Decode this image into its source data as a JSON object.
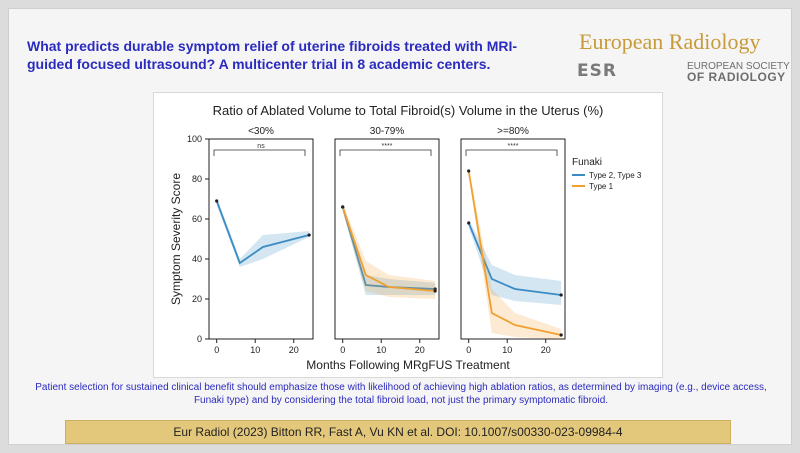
{
  "header": {
    "title": "What predicts durable symptom relief of uterine fibroids treated with MRI-guided focused ultrasound? A multicenter trial in 8 academic centers.",
    "journal": "European Radiology",
    "society_mark": "ESR",
    "society_line1": "EUROPEAN SOCIETY",
    "society_line2": "OF RADIOLOGY"
  },
  "chart_data": {
    "type": "line",
    "title": "Ratio of Ablated Volume to Total Fibroid(s) Volume in the Uterus (%)",
    "xlabel": "Months Following MRgFUS Treatment",
    "ylabel": "Symptom Severity Score",
    "ylim": [
      0,
      100
    ],
    "xlim": [
      -2,
      25
    ],
    "yticks": [
      "0",
      "20",
      "40",
      "60",
      "80",
      "100"
    ],
    "xticks": [
      "0",
      "10",
      "20"
    ],
    "legend": {
      "title": "Funaki",
      "placement": "right",
      "entries": [
        {
          "name": "Type 2, Type 3",
          "color": "#3b8cc4"
        },
        {
          "name": "Type 1",
          "color": "#f0a030"
        }
      ]
    },
    "panels": [
      {
        "title": "<30%",
        "significance": "ns",
        "series": [
          {
            "name": "Type 2, Type 3",
            "color": "#3b8cc4",
            "x": [
              0,
              6,
              12,
              24
            ],
            "y": [
              69,
              38,
              46,
              52
            ],
            "lower": [
              67,
              36,
              40,
              51
            ],
            "upper": [
              71,
              40,
              52,
              54
            ]
          }
        ]
      },
      {
        "title": "30-79%",
        "significance": "****",
        "series": [
          {
            "name": "Type 2, Type 3",
            "color": "#3b8cc4",
            "x": [
              0,
              6,
              12,
              24
            ],
            "y": [
              66,
              27,
              26,
              25
            ],
            "lower": [
              64,
              22,
              22,
              22
            ],
            "upper": [
              68,
              32,
              30,
              28
            ]
          },
          {
            "name": "Type 1",
            "color": "#f0a030",
            "x": [
              0,
              6,
              12,
              24
            ],
            "y": [
              66,
              32,
              26,
              24
            ],
            "lower": [
              64,
              24,
              21,
              20
            ],
            "upper": [
              68,
              39,
              32,
              29
            ]
          }
        ]
      },
      {
        "title": ">=80%",
        "significance": "****",
        "series": [
          {
            "name": "Type 2, Type 3",
            "color": "#3b8cc4",
            "x": [
              0,
              6,
              12,
              24
            ],
            "y": [
              58,
              30,
              25,
              22
            ],
            "lower": [
              56,
              22,
              19,
              17
            ],
            "upper": [
              60,
              37,
              32,
              29
            ]
          },
          {
            "name": "Type 1",
            "color": "#f0a030",
            "x": [
              0,
              6,
              12,
              24
            ],
            "y": [
              84,
              13,
              7,
              2
            ],
            "lower": [
              82,
              3,
              1,
              0
            ],
            "upper": [
              86,
              25,
              13,
              5
            ]
          }
        ]
      }
    ]
  },
  "conclusion": "Patient selection for sustained clinical benefit should emphasize those with likelihood of achieving high ablation ratios, as determined by imaging (e.g., device access, Funaki type) and by considering the total fibroid load, not just the primary symptomatic fibroid.",
  "citation": "Eur Radiol (2023) Bitton RR, Fast A, Vu KN et al. DOI: 10.1007/s00330-023-09984-4",
  "colors": {
    "title_blue": "#2b2bbf",
    "journal_gold": "#c79a3a",
    "citation_bg": "#e3c77a"
  }
}
